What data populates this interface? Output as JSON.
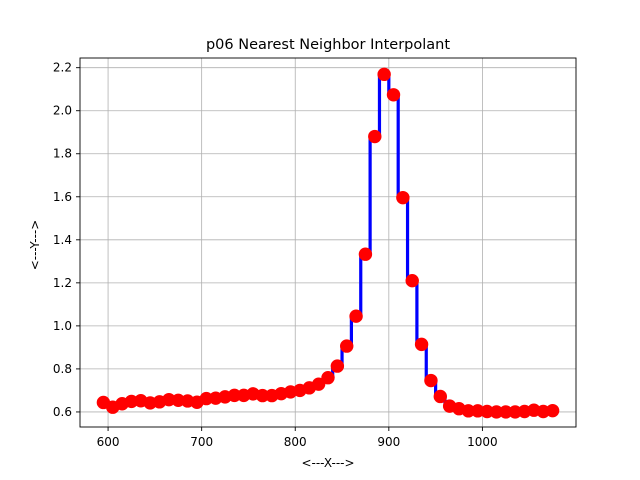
{
  "chart_data": {
    "type": "line",
    "title": "p06 Nearest Neighbor Interpolant",
    "xlabel": "<---X--->",
    "ylabel": "<---Y--->",
    "xlim": [
      570,
      1100
    ],
    "ylim": [
      0.53,
      2.245
    ],
    "xticks": [
      600,
      700,
      800,
      900,
      1000
    ],
    "yticks": [
      0.6,
      0.8,
      1.0,
      1.2,
      1.4,
      1.6,
      1.8,
      2.0,
      2.2
    ],
    "ytick_labels": [
      "0.6",
      "0.8",
      "1.0",
      "1.2",
      "1.4",
      "1.6",
      "1.8",
      "2.0",
      "2.2"
    ],
    "grid": true,
    "interpolation": "nearest-neighbor step",
    "line_color": "#0000ff",
    "marker_color": "#ff0000",
    "series": [
      {
        "x": [
          595,
          605,
          615,
          625,
          635,
          645,
          655,
          665,
          675,
          685,
          695,
          705,
          715,
          725,
          735,
          745,
          755,
          765,
          775,
          785,
          795,
          805,
          815,
          825,
          835,
          845,
          855,
          865,
          875,
          885,
          895,
          905,
          915,
          925,
          935,
          945,
          955,
          965,
          975,
          985,
          995,
          1005,
          1015,
          1025,
          1035,
          1045,
          1055,
          1065,
          1075
        ],
        "y": [
          0.644,
          0.622,
          0.638,
          0.649,
          0.652,
          0.642,
          0.647,
          0.657,
          0.654,
          0.651,
          0.645,
          0.662,
          0.664,
          0.67,
          0.677,
          0.677,
          0.684,
          0.676,
          0.676,
          0.685,
          0.693,
          0.7,
          0.712,
          0.729,
          0.759,
          0.813,
          0.906,
          1.045,
          1.333,
          1.88,
          2.169,
          2.074,
          1.596,
          1.21,
          0.914,
          0.746,
          0.672,
          0.627,
          0.615,
          0.605,
          0.605,
          0.602,
          0.6,
          0.6,
          0.6,
          0.602,
          0.608,
          0.602,
          0.606
        ]
      }
    ]
  }
}
